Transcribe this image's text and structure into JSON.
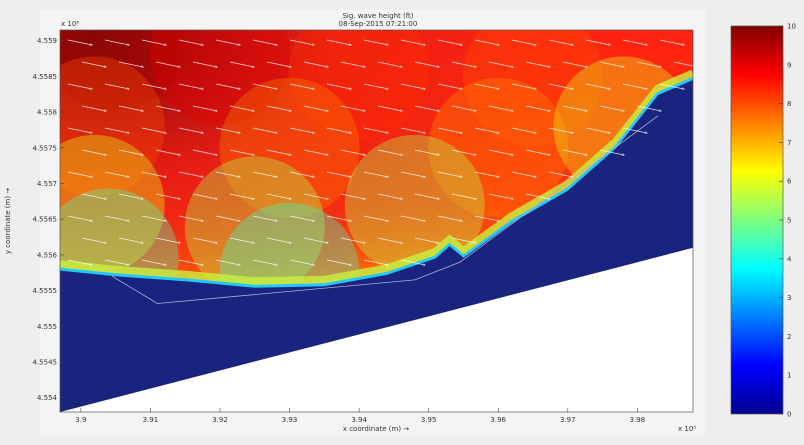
{
  "chart_data": {
    "type": "heatmap",
    "title": "Sig. wave height (ft)",
    "subtitle": "08-Sep-2015 07:21:00",
    "xlabel": "x coordinate (m) →",
    "ylabel": "y coordinate (m) →",
    "x_exponent": "x 10⁵",
    "y_exponent": "x 10⁶",
    "x_ticks": [
      "3.9",
      "3.91",
      "3.92",
      "3.93",
      "3.94",
      "3.95",
      "3.96",
      "3.97",
      "3.98"
    ],
    "y_ticks": [
      "4.559",
      "4.5585",
      "4.558",
      "4.5575",
      "4.557",
      "4.5565",
      "4.556",
      "4.5555",
      "4.555",
      "4.5545",
      "4.554"
    ],
    "xlim": [
      389700,
      398800
    ],
    "ylim": [
      4553800,
      4559150
    ],
    "colorbar": {
      "min": 0,
      "max": 10,
      "ticks": [
        "0",
        "1",
        "2",
        "3",
        "4",
        "5",
        "6",
        "7",
        "8",
        "9",
        "10"
      ],
      "colormap": [
        "#00008f",
        "#0000ff",
        "#00ffff",
        "#ffff00",
        "#ff0000",
        "#800000"
      ]
    },
    "land_color": "#1a237e",
    "outside_grid_color": "#ffffff",
    "shoreline": [
      {
        "x": 389700,
        "y": 4555780
      },
      {
        "x": 390500,
        "y": 4555700
      },
      {
        "x": 391500,
        "y": 4555630
      },
      {
        "x": 392500,
        "y": 4555540
      },
      {
        "x": 393500,
        "y": 4555560
      },
      {
        "x": 394400,
        "y": 4555720
      },
      {
        "x": 395100,
        "y": 4555950
      },
      {
        "x": 395300,
        "y": 4556120
      },
      {
        "x": 395500,
        "y": 4555960
      },
      {
        "x": 396200,
        "y": 4556450
      },
      {
        "x": 397000,
        "y": 4556900
      },
      {
        "x": 397700,
        "y": 4557500
      },
      {
        "x": 398300,
        "y": 4558240
      },
      {
        "x": 398800,
        "y": 4558450
      }
    ],
    "grid_boundary": [
      {
        "x": 389700,
        "y": 4553800
      },
      {
        "x": 398800,
        "y": 4556100
      }
    ],
    "wave_height_ft": [
      {
        "x": 390500,
        "y": 4559000,
        "h": 9.6
      },
      {
        "x": 392000,
        "y": 4558800,
        "h": 9.0
      },
      {
        "x": 394000,
        "y": 4558600,
        "h": 8.3
      },
      {
        "x": 396500,
        "y": 4558500,
        "h": 8.0
      },
      {
        "x": 390200,
        "y": 4557800,
        "h": 8.0
      },
      {
        "x": 393000,
        "y": 4557500,
        "h": 7.5
      },
      {
        "x": 396000,
        "y": 4557500,
        "h": 7.4
      },
      {
        "x": 390200,
        "y": 4556700,
        "h": 6.0
      },
      {
        "x": 392500,
        "y": 4556400,
        "h": 5.5
      },
      {
        "x": 394800,
        "y": 4556700,
        "h": 5.5
      },
      {
        "x": 390400,
        "y": 4555950,
        "h": 4.5
      },
      {
        "x": 393000,
        "y": 4555750,
        "h": 4.3
      },
      {
        "x": 397800,
        "y": 4557800,
        "h": 6.0
      }
    ],
    "wave_direction": "east-southeast",
    "grid": false
  }
}
